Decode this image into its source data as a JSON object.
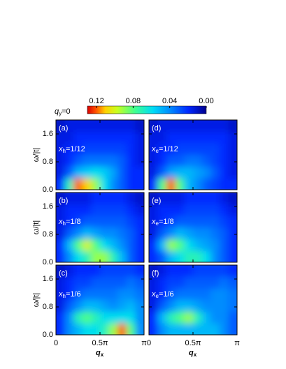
{
  "colorbar": {
    "label": {
      "base": "q",
      "sub": "y",
      "rest": "=0"
    },
    "clim": [
      0,
      0.13
    ],
    "ticks": [
      0.12,
      0.08,
      0.04,
      {
        "value": 0,
        "label": "0.00"
      }
    ]
  },
  "chart_data": [
    {
      "type": "heatmap",
      "label": "(a)",
      "doping": {
        "base": "x",
        "sub": "h",
        "rest": "=1/12"
      },
      "ylabel": "ω/|t|",
      "xlim": [
        0,
        1
      ],
      "ylim": [
        0,
        2
      ],
      "xticks": [
        0,
        {
          "value": 0.5,
          "label": "0.5π"
        },
        {
          "value": 1,
          "label": "π"
        }
      ],
      "yticks": [
        {
          "value": 0,
          "label": "0.0"
        },
        0.8,
        1.6
      ],
      "z": [
        [
          0.02,
          0.07,
          0.12,
          0.11,
          0.09,
          0.06,
          0.04,
          0.03,
          0.02,
          0.02
        ],
        [
          0.015,
          0.03,
          0.05,
          0.055,
          0.06,
          0.055,
          0.045,
          0.03,
          0.02,
          0.02
        ],
        [
          0.015,
          0.02,
          0.03,
          0.035,
          0.035,
          0.035,
          0.035,
          0.03,
          0.02,
          0.015
        ],
        [
          0.015,
          0.02,
          0.02,
          0.025,
          0.025,
          0.025,
          0.025,
          0.025,
          0.02,
          0.015
        ],
        [
          0.015,
          0.015,
          0.02,
          0.02,
          0.02,
          0.02,
          0.02,
          0.02,
          0.02,
          0.015
        ],
        [
          0.01,
          0.015,
          0.015,
          0.015,
          0.015,
          0.015,
          0.015,
          0.015,
          0.015,
          0.01
        ]
      ]
    },
    {
      "type": "heatmap",
      "label": "(b)",
      "doping": {
        "base": "x",
        "sub": "h",
        "rest": "=1/8"
      },
      "ylabel": "ω/|t|",
      "xlim": [
        0,
        1
      ],
      "ylim": [
        0,
        2
      ],
      "xticks": [
        0,
        {
          "value": 0.5,
          "label": "0.5π"
        },
        {
          "value": 1,
          "label": "π"
        }
      ],
      "yticks": [
        {
          "value": 0,
          "label": "0.0"
        },
        0.8,
        1.6
      ],
      "z": [
        [
          0.02,
          0.04,
          0.06,
          0.07,
          0.09,
          0.09,
          0.07,
          0.05,
          0.03,
          0.02
        ],
        [
          0.02,
          0.05,
          0.08,
          0.1,
          0.08,
          0.06,
          0.05,
          0.04,
          0.03,
          0.02
        ],
        [
          0.015,
          0.03,
          0.04,
          0.05,
          0.045,
          0.04,
          0.04,
          0.035,
          0.03,
          0.02
        ],
        [
          0.015,
          0.02,
          0.025,
          0.03,
          0.03,
          0.03,
          0.03,
          0.03,
          0.025,
          0.02
        ],
        [
          0.015,
          0.02,
          0.02,
          0.02,
          0.025,
          0.025,
          0.025,
          0.025,
          0.02,
          0.015
        ],
        [
          0.01,
          0.015,
          0.015,
          0.015,
          0.02,
          0.02,
          0.02,
          0.02,
          0.015,
          0.01
        ]
      ]
    },
    {
      "type": "heatmap",
      "label": "(c)",
      "doping": {
        "base": "x",
        "sub": "h",
        "rest": "=1/6"
      },
      "ylabel": "ω/|t|",
      "xlabel": {
        "base": "q",
        "sub": "x"
      },
      "xlim": [
        0,
        1
      ],
      "ylim": [
        0,
        2
      ],
      "xticks": [
        0,
        {
          "value": 0.5,
          "label": "0.5π"
        },
        {
          "value": 1,
          "label": "π"
        }
      ],
      "yticks": [
        {
          "value": 0,
          "label": "0.0"
        },
        0.8,
        1.6
      ],
      "z": [
        [
          0.02,
          0.04,
          0.05,
          0.06,
          0.06,
          0.07,
          0.09,
          0.12,
          0.08,
          0.04
        ],
        [
          0.02,
          0.04,
          0.07,
          0.08,
          0.07,
          0.06,
          0.06,
          0.06,
          0.06,
          0.04
        ],
        [
          0.015,
          0.03,
          0.04,
          0.05,
          0.05,
          0.045,
          0.04,
          0.045,
          0.05,
          0.04
        ],
        [
          0.015,
          0.02,
          0.03,
          0.035,
          0.035,
          0.035,
          0.035,
          0.04,
          0.04,
          0.035
        ],
        [
          0.015,
          0.02,
          0.025,
          0.025,
          0.03,
          0.03,
          0.03,
          0.03,
          0.035,
          0.03
        ],
        [
          0.01,
          0.015,
          0.02,
          0.02,
          0.02,
          0.025,
          0.025,
          0.025,
          0.025,
          0.02
        ]
      ]
    },
    {
      "type": "heatmap",
      "label": "(d)",
      "doping": {
        "base": "x",
        "sub": "e",
        "rest": "=1/12"
      },
      "xlim": [
        0,
        1
      ],
      "ylim": [
        0,
        2
      ],
      "xticks": [
        0,
        {
          "value": 0.5,
          "label": "0.5π"
        },
        {
          "value": 1,
          "label": "π"
        }
      ],
      "yticks": [
        {
          "value": 0,
          "label": "0.0"
        },
        0.8,
        1.6
      ],
      "z": [
        [
          0.02,
          0.08,
          0.12,
          0.08,
          0.05,
          0.04,
          0.03,
          0.025,
          0.02,
          0.02
        ],
        [
          0.015,
          0.03,
          0.045,
          0.05,
          0.05,
          0.045,
          0.04,
          0.03,
          0.02,
          0.015
        ],
        [
          0.015,
          0.02,
          0.03,
          0.03,
          0.035,
          0.035,
          0.03,
          0.025,
          0.02,
          0.015
        ],
        [
          0.015,
          0.02,
          0.02,
          0.025,
          0.025,
          0.025,
          0.025,
          0.025,
          0.02,
          0.015
        ],
        [
          0.015,
          0.015,
          0.02,
          0.02,
          0.02,
          0.02,
          0.02,
          0.02,
          0.02,
          0.015
        ],
        [
          0.01,
          0.015,
          0.015,
          0.015,
          0.015,
          0.015,
          0.015,
          0.015,
          0.015,
          0.01
        ]
      ]
    },
    {
      "type": "heatmap",
      "label": "(e)",
      "doping": {
        "base": "x",
        "sub": "e",
        "rest": "=1/8"
      },
      "xlim": [
        0,
        1
      ],
      "ylim": [
        0,
        2
      ],
      "xticks": [
        0,
        {
          "value": 0.5,
          "label": "0.5π"
        },
        {
          "value": 1,
          "label": "π"
        }
      ],
      "yticks": [
        {
          "value": 0,
          "label": "0.0"
        },
        0.8,
        1.6
      ],
      "z": [
        [
          0.02,
          0.03,
          0.05,
          0.06,
          0.07,
          0.07,
          0.06,
          0.04,
          0.03,
          0.02
        ],
        [
          0.02,
          0.05,
          0.09,
          0.08,
          0.06,
          0.05,
          0.045,
          0.04,
          0.03,
          0.02
        ],
        [
          0.015,
          0.03,
          0.04,
          0.05,
          0.045,
          0.04,
          0.04,
          0.035,
          0.03,
          0.02
        ],
        [
          0.015,
          0.02,
          0.025,
          0.03,
          0.03,
          0.03,
          0.03,
          0.03,
          0.025,
          0.02
        ],
        [
          0.015,
          0.02,
          0.02,
          0.02,
          0.025,
          0.025,
          0.025,
          0.025,
          0.02,
          0.015
        ],
        [
          0.01,
          0.015,
          0.015,
          0.015,
          0.02,
          0.02,
          0.02,
          0.02,
          0.015,
          0.01
        ]
      ]
    },
    {
      "type": "heatmap",
      "label": "(f)",
      "doping": {
        "base": "x",
        "sub": "e",
        "rest": "=1/6"
      },
      "xlabel": {
        "base": "q",
        "sub": "x"
      },
      "xlim": [
        0,
        1
      ],
      "ylim": [
        0,
        2
      ],
      "xticks": [
        0,
        {
          "value": 0.5,
          "label": "0.5π"
        },
        {
          "value": 1,
          "label": "π"
        }
      ],
      "yticks": [
        {
          "value": 0,
          "label": "0.0"
        },
        0.8,
        1.6
      ],
      "z": [
        [
          0.02,
          0.04,
          0.05,
          0.05,
          0.05,
          0.05,
          0.05,
          0.05,
          0.04,
          0.03
        ],
        [
          0.02,
          0.05,
          0.07,
          0.08,
          0.09,
          0.07,
          0.05,
          0.04,
          0.04,
          0.03
        ],
        [
          0.015,
          0.03,
          0.04,
          0.05,
          0.05,
          0.045,
          0.04,
          0.04,
          0.04,
          0.035
        ],
        [
          0.015,
          0.02,
          0.03,
          0.035,
          0.035,
          0.035,
          0.035,
          0.04,
          0.04,
          0.035
        ],
        [
          0.015,
          0.02,
          0.025,
          0.025,
          0.03,
          0.03,
          0.03,
          0.03,
          0.035,
          0.03
        ],
        [
          0.01,
          0.015,
          0.02,
          0.02,
          0.02,
          0.025,
          0.025,
          0.025,
          0.025,
          0.02
        ]
      ]
    }
  ]
}
